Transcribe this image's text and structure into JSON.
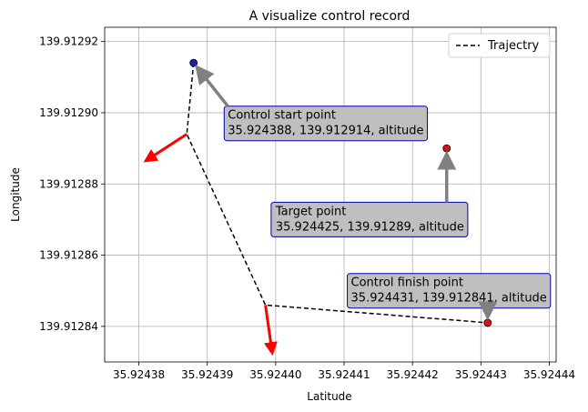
{
  "chart_data": {
    "type": "line",
    "title": "A visualize control record",
    "xlabel": "Latitude",
    "ylabel": "Longitude",
    "xlim": [
      35.924375,
      35.924441
    ],
    "ylim": [
      139.91283,
      139.912924
    ],
    "x_ticks": [
      35.92438,
      35.92439,
      35.9244,
      35.92441,
      35.92442,
      35.92443,
      35.92444
    ],
    "x_tick_labels": [
      "35.92438",
      "35.92439",
      "35.92440",
      "35.92441",
      "35.92442",
      "35.92443",
      "35.92444"
    ],
    "y_ticks": [
      139.91284,
      139.91286,
      139.91288,
      139.9129,
      139.91292
    ],
    "y_tick_labels": [
      "139.91284",
      "139.91286",
      "139.91288",
      "139.91290",
      "139.91292"
    ],
    "grid": true,
    "legend": {
      "position": "upper-right",
      "entries": [
        "Trajectry"
      ]
    },
    "series": [
      {
        "name": "Trajectry",
        "style": "dashed",
        "color": "#000000",
        "x": [
          35.924388,
          35.924387,
          35.9243985,
          35.924431
        ],
        "y": [
          139.912914,
          139.912894,
          139.912846,
          139.912841
        ]
      }
    ],
    "points": [
      {
        "x": 35.924388,
        "y": 139.912914,
        "color": "#1f1fbf"
      },
      {
        "x": 35.924425,
        "y": 139.91289,
        "color": "#e01010"
      },
      {
        "x": 35.924431,
        "y": 139.912841,
        "color": "#e01010"
      }
    ],
    "direction_arrows": [
      {
        "color": "#ff0000",
        "from": [
          35.924387,
          139.912894
        ],
        "to": [
          35.924381,
          139.9128865
        ]
      },
      {
        "color": "#ff0000",
        "from": [
          35.9243985,
          139.912846
        ],
        "to": [
          35.9243995,
          139.9128325
        ]
      }
    ],
    "annotations": [
      {
        "text": "Control start point\n35.924388, 139.912914, altitude",
        "anchor": [
          35.924393,
          139.912897
        ],
        "arrow_to": [
          35.924388,
          139.912914
        ]
      },
      {
        "text": "Target point\n35.924425, 139.91289, altitude",
        "anchor": [
          35.9244,
          139.91287
        ],
        "arrow_to": [
          35.924425,
          139.91289
        ]
      },
      {
        "text": "Control finish point\n35.924431, 139.912841, altitude",
        "anchor": [
          35.924411,
          139.91285
        ],
        "arrow_to": [
          35.924431,
          139.912841
        ]
      }
    ]
  }
}
